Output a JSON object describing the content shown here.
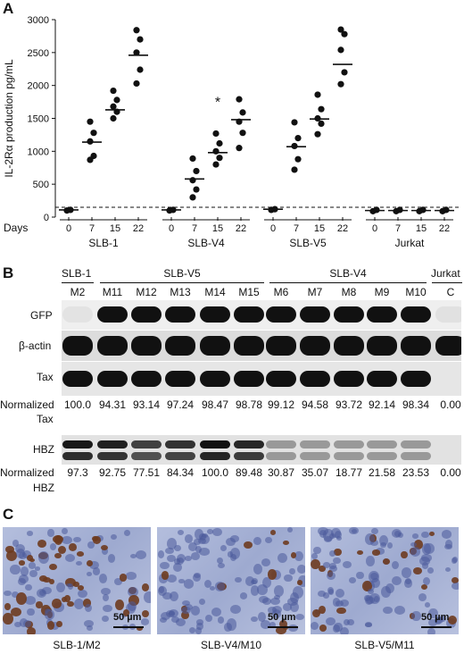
{
  "panels": {
    "a": "A",
    "b": "B",
    "c": "C"
  },
  "chart_data": {
    "type": "scatter",
    "ylabel": "IL-2Rα production pg/mL",
    "xlabel": "Days",
    "ylim": [
      0,
      3000
    ],
    "yticks": [
      "0",
      "500",
      "1000",
      "1500",
      "2000",
      "2500",
      "3000"
    ],
    "baseline": 150,
    "groups": [
      {
        "name": "SLB-1",
        "days": [
          "0",
          "7",
          "15",
          "22"
        ],
        "points": [
          [
            100,
            110
          ],
          [
            1450,
            1280,
            1150,
            930,
            870
          ],
          [
            1920,
            1780,
            1680,
            1600,
            1500
          ],
          [
            2840,
            2700,
            2500,
            2240,
            2030
          ]
        ],
        "means": [
          110,
          1140,
          1630,
          2460
        ]
      },
      {
        "name": "SLB-V4",
        "days": [
          "0",
          "7",
          "15",
          "22"
        ],
        "points": [
          [
            100,
            110
          ],
          [
            890,
            700,
            560,
            420,
            300
          ],
          [
            1270,
            1120,
            1000,
            900,
            800
          ],
          [
            1790,
            1590,
            1450,
            1280,
            1050
          ]
        ],
        "means": [
          110,
          580,
          980,
          1480
        ],
        "annotation": "*"
      },
      {
        "name": "SLB-V5",
        "days": [
          "0",
          "7",
          "15",
          "22"
        ],
        "points": [
          [
            110,
            120
          ],
          [
            1440,
            1200,
            1080,
            880,
            720
          ],
          [
            1860,
            1640,
            1500,
            1420,
            1260
          ],
          [
            2850,
            2780,
            2540,
            2200,
            2020
          ]
        ],
        "means": [
          120,
          1070,
          1490,
          2320
        ]
      },
      {
        "name": "Jurkat",
        "days": [
          "0",
          "7",
          "15",
          "22"
        ],
        "points": [
          [
            90,
            110
          ],
          [
            90,
            110
          ],
          [
            90,
            110
          ],
          [
            90,
            110
          ]
        ],
        "means": [
          100,
          100,
          100,
          100
        ]
      }
    ]
  },
  "blot": {
    "groups": [
      "SLB-1",
      "SLB-V5",
      "SLB-V4",
      "Jurkat"
    ],
    "lanes": [
      "M2",
      "M11",
      "M12",
      "M13",
      "M14",
      "M15",
      "M6",
      "M7",
      "M8",
      "M9",
      "M10",
      "C"
    ],
    "rows": {
      "gfp": "GFP",
      "actin": "β-actin",
      "tax": "Tax",
      "tax_norm_1": "Normalized",
      "tax_norm_2": "Tax",
      "hbz": "HBZ",
      "hbz_norm_1": "Normalized",
      "hbz_norm_2": "HBZ"
    },
    "tax_values": [
      "100.0",
      "94.31",
      "93.14",
      "97.24",
      "98.47",
      "98.78",
      "99.12",
      "94.58",
      "93.72",
      "92.14",
      "98.34",
      "0.00"
    ],
    "hbz_values": [
      "97.3",
      "92.75",
      "77.51",
      "84.34",
      "100.0",
      "89.48",
      "30.87",
      "35.07",
      "18.77",
      "21.58",
      "23.53",
      "0.00"
    ]
  },
  "micrographs": {
    "scale": "50 µm",
    "captions": [
      "SLB-1/M2",
      "SLB-V4/M10",
      "SLB-V5/M11"
    ]
  },
  "colors": {
    "band": "#111111",
    "blot_bg": "#e8e8e8",
    "stain_bg": "#a8b3d3",
    "nucleus_brown": "#6e3b1f",
    "nucleus_blue": "#4a5a9a"
  }
}
